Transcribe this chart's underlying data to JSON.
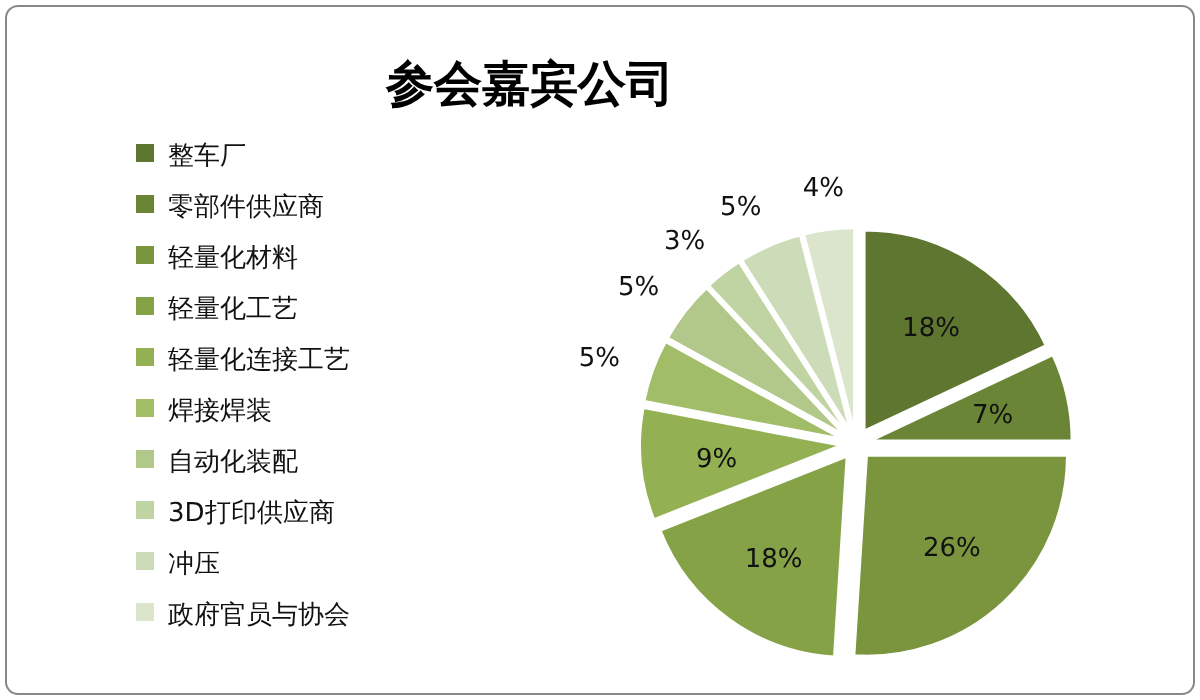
{
  "chart_data": {
    "type": "pie",
    "title": "参会嘉宾公司",
    "categories": [
      "整车厂",
      "零部件供应商",
      "轻量化材料",
      "轻量化工艺",
      "轻量化连接工艺",
      "焊接焊装",
      "自动化装配",
      "3D打印供应商",
      "冲压",
      "政府官员与协会"
    ],
    "values": [
      18,
      7,
      26,
      18,
      9,
      5,
      5,
      3,
      5,
      4
    ],
    "value_labels": [
      "18%",
      "7%",
      "26%",
      "18%",
      "9%",
      "5%",
      "5%",
      "3%",
      "5%",
      "4%"
    ],
    "colors": [
      "#5e7630",
      "#6b8536",
      "#7a953e",
      "#86a247",
      "#93b152",
      "#a2bd68",
      "#b1c88a",
      "#c0d3a2",
      "#cddcb8",
      "#dbe5cc"
    ],
    "legend": "left"
  }
}
